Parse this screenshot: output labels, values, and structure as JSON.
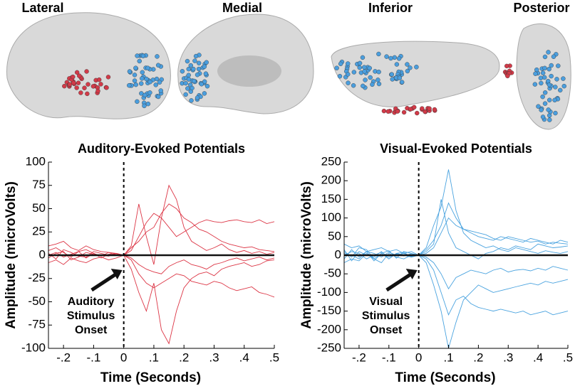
{
  "brain_views": [
    "Lateral",
    "Medial",
    "Inferior",
    "Posterior"
  ],
  "chart_data": [
    {
      "type": "line",
      "title": "Auditory-Evoked Potentials",
      "x_label": "Time (Seconds)",
      "y_label": "Amplitude (microVolts)",
      "annotation": [
        "Auditory",
        "Stimulus",
        "Onset"
      ],
      "vlines": [
        0
      ],
      "hlines": [
        0
      ],
      "xlim": [
        -0.25,
        0.5
      ],
      "ylim": [
        -100,
        100
      ],
      "xticks": [
        {
          "value": -0.2,
          "label": "-.2"
        },
        {
          "value": -0.1,
          "label": "-.1"
        },
        0,
        {
          "value": 0.1,
          "label": ".1"
        },
        {
          "value": 0.2,
          "label": ".2"
        },
        {
          "value": 0.3,
          "label": ".3"
        },
        {
          "value": 0.4,
          "label": ".4"
        },
        {
          "value": 0.5,
          "label": ".5"
        }
      ],
      "yticks": [
        -100,
        -75,
        -50,
        -25,
        0,
        25,
        50,
        75,
        100
      ],
      "x": [
        -0.25,
        -0.225,
        -0.2,
        -0.175,
        -0.15,
        -0.125,
        -0.1,
        -0.075,
        -0.05,
        -0.025,
        0,
        0.025,
        0.05,
        0.075,
        0.1,
        0.125,
        0.15,
        0.175,
        0.2,
        0.225,
        0.25,
        0.275,
        0.3,
        0.325,
        0.35,
        0.375,
        0.4,
        0.425,
        0.45,
        0.475,
        0.5
      ],
      "series": [
        {
          "color": "#dc3545",
          "values": [
            5,
            8,
            3,
            -2,
            4,
            6,
            2,
            -3,
            1,
            2,
            0,
            10,
            55,
            20,
            -10,
            40,
            75,
            60,
            30,
            15,
            10,
            5,
            8,
            12,
            6,
            3,
            5,
            2,
            4,
            1,
            3
          ]
        },
        {
          "color": "#dc3545",
          "values": [
            -8,
            -5,
            -10,
            -3,
            -6,
            -8,
            -4,
            -2,
            -5,
            -3,
            0,
            -15,
            -40,
            -60,
            -30,
            -80,
            -95,
            -60,
            -35,
            -25,
            -20,
            -18,
            -22,
            -15,
            -12,
            -10,
            -8,
            -12,
            -10,
            -6,
            -5
          ]
        },
        {
          "color": "#dc3545",
          "values": [
            10,
            12,
            15,
            8,
            5,
            10,
            6,
            4,
            3,
            2,
            0,
            5,
            20,
            35,
            45,
            40,
            30,
            20,
            25,
            30,
            35,
            38,
            36,
            35,
            37,
            38,
            36,
            35,
            38,
            34,
            36
          ]
        },
        {
          "color": "#dc3545",
          "values": [
            -3,
            2,
            4,
            -5,
            -2,
            3,
            1,
            0,
            -1,
            2,
            0,
            -5,
            -20,
            -30,
            -35,
            -30,
            -25,
            -20,
            -22,
            -28,
            -30,
            -32,
            -28,
            -30,
            -35,
            -38,
            -36,
            -34,
            -40,
            -42,
            -45
          ]
        },
        {
          "color": "#dc3545",
          "values": [
            2,
            -4,
            6,
            3,
            -1,
            -2,
            4,
            2,
            0,
            1,
            0,
            8,
            15,
            25,
            30,
            45,
            55,
            50,
            40,
            35,
            28,
            25,
            20,
            15,
            12,
            10,
            8,
            9,
            6,
            5,
            4
          ]
        },
        {
          "color": "#dc3545",
          "values": [
            0,
            3,
            -2,
            1,
            4,
            -3,
            2,
            -1,
            3,
            0,
            0,
            -3,
            -10,
            -15,
            -18,
            -20,
            -12,
            -8,
            -5,
            -10,
            -12,
            -15,
            -10,
            -8,
            -5,
            -3,
            -6,
            -4,
            -2,
            -5,
            -3
          ]
        }
      ]
    },
    {
      "type": "line",
      "title": "Visual-Evoked Potentials",
      "x_label": "Time (Seconds)",
      "y_label": "Amplitude (microVolts)",
      "annotation": [
        "Visual",
        "Stimulus",
        "Onset"
      ],
      "vlines": [
        0
      ],
      "hlines": [
        0
      ],
      "xlim": [
        -0.25,
        0.5
      ],
      "ylim": [
        -250,
        250
      ],
      "xticks": [
        {
          "value": -0.2,
          "label": "-.2"
        },
        {
          "value": -0.1,
          "label": "-.1"
        },
        0,
        {
          "value": 0.1,
          "label": ".1"
        },
        {
          "value": 0.2,
          "label": ".2"
        },
        {
          "value": 0.3,
          "label": ".3"
        },
        {
          "value": 0.4,
          "label": ".4"
        },
        {
          "value": 0.5,
          "label": ".5"
        }
      ],
      "yticks": [
        -250,
        -200,
        -150,
        -100,
        -50,
        0,
        50,
        100,
        150,
        200,
        250
      ],
      "x": [
        -0.25,
        -0.225,
        -0.2,
        -0.175,
        -0.15,
        -0.125,
        -0.1,
        -0.075,
        -0.05,
        -0.025,
        0,
        0.025,
        0.05,
        0.075,
        0.1,
        0.125,
        0.15,
        0.175,
        0.2,
        0.225,
        0.25,
        0.275,
        0.3,
        0.325,
        0.35,
        0.375,
        0.4,
        0.425,
        0.45,
        0.475,
        0.5
      ],
      "series": [
        {
          "color": "#4aa3df",
          "values": [
            10,
            -5,
            20,
            15,
            -10,
            5,
            12,
            -8,
            10,
            5,
            0,
            20,
            80,
            130,
            230,
            120,
            60,
            40,
            30,
            20,
            25,
            15,
            10,
            20,
            15,
            10,
            5,
            12,
            8,
            5,
            10
          ]
        },
        {
          "color": "#4aa3df",
          "values": [
            -20,
            -10,
            -15,
            5,
            -10,
            -20,
            5,
            -5,
            -10,
            0,
            0,
            -20,
            -80,
            -150,
            -250,
            -180,
            -120,
            -100,
            -80,
            -90,
            -100,
            -95,
            -90,
            -85,
            -80,
            -75,
            -80,
            -70,
            -75,
            -70,
            -65
          ]
        },
        {
          "color": "#4aa3df",
          "values": [
            30,
            20,
            25,
            10,
            15,
            20,
            10,
            15,
            5,
            10,
            0,
            15,
            40,
            80,
            140,
            100,
            70,
            60,
            50,
            45,
            40,
            50,
            45,
            40,
            35,
            45,
            40,
            35,
            30,
            40,
            35
          ]
        },
        {
          "color": "#4aa3df",
          "values": [
            -10,
            15,
            -5,
            10,
            -15,
            5,
            -10,
            5,
            0,
            -5,
            0,
            -10,
            -40,
            -100,
            -160,
            -120,
            -110,
            -130,
            -140,
            -145,
            -150,
            -145,
            -150,
            -155,
            -150,
            -160,
            -155,
            -150,
            -160,
            -155,
            -150
          ]
        },
        {
          "color": "#4aa3df",
          "values": [
            5,
            0,
            -10,
            10,
            5,
            -5,
            8,
            0,
            5,
            -3,
            0,
            5,
            20,
            60,
            100,
            80,
            70,
            65,
            60,
            55,
            45,
            40,
            50,
            45,
            40,
            35,
            38,
            30,
            35,
            32,
            30
          ]
        },
        {
          "color": "#4aa3df",
          "values": [
            0,
            10,
            5,
            -10,
            0,
            8,
            -5,
            3,
            -2,
            4,
            0,
            -5,
            -20,
            -50,
            -90,
            -60,
            -50,
            -40,
            -45,
            -50,
            -40,
            -35,
            -45,
            -40,
            -38,
            -42,
            -35,
            -40,
            -30,
            -35,
            -40
          ]
        },
        {
          "color": "#4aa3df",
          "values": [
            15,
            -15,
            10,
            0,
            -5,
            10,
            -10,
            5,
            8,
            -5,
            0,
            10,
            30,
            150,
            60,
            20,
            10,
            0,
            -10,
            5,
            10,
            20,
            15,
            25,
            20,
            15,
            30,
            25,
            20,
            22,
            25
          ]
        }
      ]
    }
  ]
}
